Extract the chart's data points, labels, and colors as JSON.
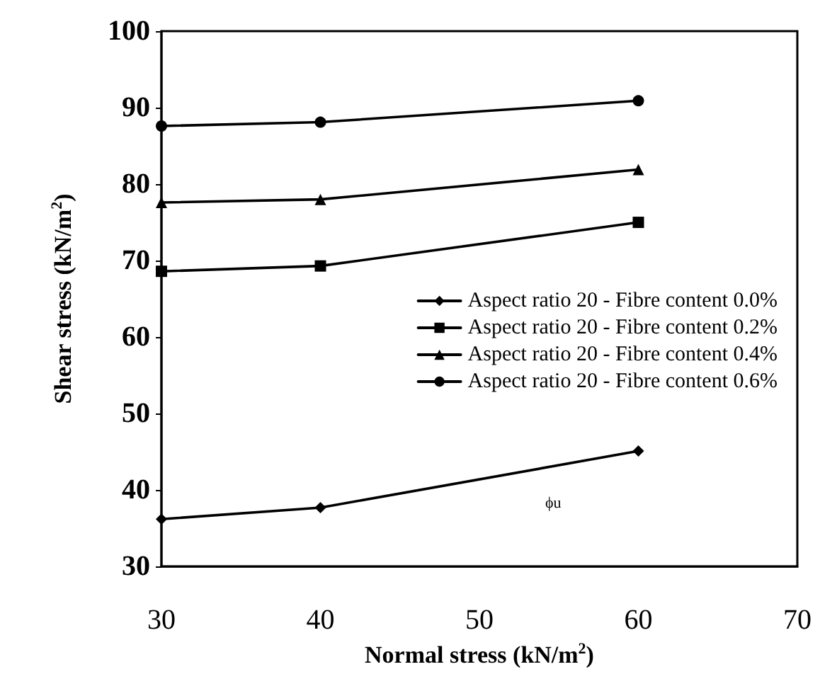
{
  "chart_data": {
    "type": "line",
    "xlabel": "Normal stress (kN/m$^{2}$)",
    "ylabel": "Shear stress (kN/m$^{2}$)",
    "x": [
      30,
      40,
      60
    ],
    "series": [
      {
        "name": "Aspect ratio 20 - Fibre content 0.0%",
        "color": "#000000",
        "marker": "diamond",
        "values": [
          36.2,
          37.7,
          45.1
        ]
      },
      {
        "name": "Aspect ratio 20 - Fibre content 0.2%",
        "color": "#000000",
        "marker": "square",
        "values": [
          68.6,
          69.3,
          75.0
        ]
      },
      {
        "name": "Aspect ratio 20 - Fibre content 0.4%",
        "color": "#000000",
        "marker": "triangle",
        "values": [
          77.6,
          78.0,
          81.9
        ]
      },
      {
        "name": "Aspect ratio 20 - Fibre content 0.6%",
        "color": "#000000",
        "marker": "circle",
        "values": [
          87.6,
          88.1,
          90.9
        ]
      }
    ],
    "annotations": [
      "ϕu"
    ],
    "xlim": [
      30,
      70
    ],
    "xticks": [
      30,
      40,
      50,
      60,
      70
    ],
    "ylim": [
      30,
      100
    ],
    "yticks": [
      30,
      40,
      50,
      60,
      70,
      80,
      90,
      100
    ],
    "grid": false,
    "legend": "right",
    "line_style": "solid"
  }
}
